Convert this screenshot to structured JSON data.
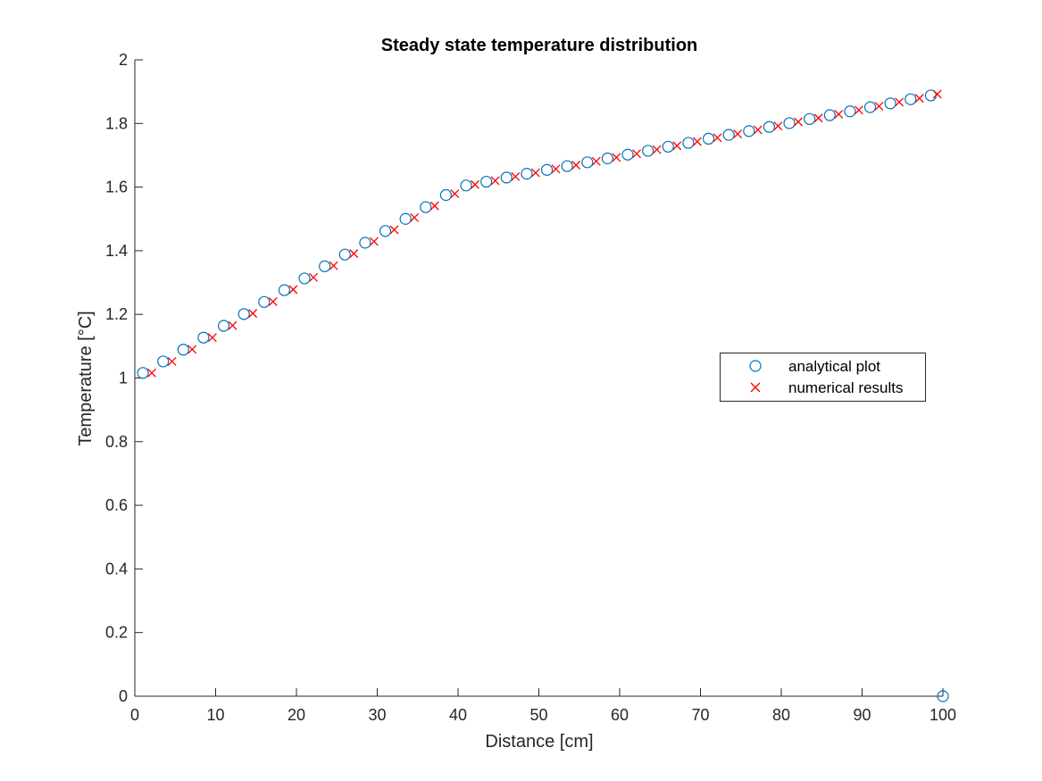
{
  "chart_data": {
    "type": "scatter",
    "title": "Steady state temperature distribution",
    "xlabel": "Distance [cm]",
    "ylabel": "Temperature [°C]",
    "xlim": [
      0,
      100
    ],
    "ylim": [
      0,
      2
    ],
    "xticks": [
      "0",
      "10",
      "20",
      "30",
      "40",
      "50",
      "60",
      "70",
      "80",
      "90",
      "100"
    ],
    "yticks": [
      "0",
      "0.2",
      "0.4",
      "0.6",
      "0.8",
      "1",
      "1.2",
      "1.4",
      "1.6",
      "1.8",
      "2"
    ],
    "grid": false,
    "legend_position": "right",
    "series": [
      {
        "name": "analytical plot",
        "marker": "circle",
        "color": "#0072BD",
        "points": [
          [
            1.0,
            1.016
          ],
          [
            3.5,
            1.052
          ],
          [
            6.0,
            1.089
          ],
          [
            8.5,
            1.127
          ],
          [
            11.0,
            1.164
          ],
          [
            13.5,
            1.201
          ],
          [
            16.0,
            1.239
          ],
          [
            18.5,
            1.276
          ],
          [
            21.0,
            1.313
          ],
          [
            23.5,
            1.351
          ],
          [
            26.0,
            1.388
          ],
          [
            28.5,
            1.425
          ],
          [
            31.0,
            1.462
          ],
          [
            33.5,
            1.5
          ],
          [
            36.0,
            1.537
          ],
          [
            38.5,
            1.575
          ],
          [
            41.0,
            1.605
          ],
          [
            43.5,
            1.617
          ],
          [
            46.0,
            1.63
          ],
          [
            48.5,
            1.642
          ],
          [
            51.0,
            1.654
          ],
          [
            53.5,
            1.666
          ],
          [
            56.0,
            1.678
          ],
          [
            58.5,
            1.69
          ],
          [
            61.0,
            1.702
          ],
          [
            63.5,
            1.714
          ],
          [
            66.0,
            1.727
          ],
          [
            68.5,
            1.739
          ],
          [
            71.0,
            1.752
          ],
          [
            73.5,
            1.764
          ],
          [
            76.0,
            1.776
          ],
          [
            78.5,
            1.789
          ],
          [
            81.0,
            1.801
          ],
          [
            83.5,
            1.814
          ],
          [
            86.0,
            1.826
          ],
          [
            88.5,
            1.838
          ],
          [
            91.0,
            1.851
          ],
          [
            93.5,
            1.863
          ],
          [
            96.0,
            1.876
          ],
          [
            98.5,
            1.888
          ],
          [
            100.0,
            0.0
          ]
        ]
      },
      {
        "name": "numerical results",
        "marker": "x",
        "color": "#FF0000",
        "points": [
          [
            2.1,
            1.016
          ],
          [
            4.6,
            1.052
          ],
          [
            7.1,
            1.09
          ],
          [
            9.6,
            1.127
          ],
          [
            12.1,
            1.165
          ],
          [
            14.6,
            1.203
          ],
          [
            17.1,
            1.24
          ],
          [
            19.6,
            1.278
          ],
          [
            22.1,
            1.316
          ],
          [
            24.6,
            1.353
          ],
          [
            27.1,
            1.391
          ],
          [
            29.6,
            1.429
          ],
          [
            32.1,
            1.466
          ],
          [
            34.6,
            1.504
          ],
          [
            37.1,
            1.541
          ],
          [
            39.6,
            1.579
          ],
          [
            42.1,
            1.608
          ],
          [
            44.6,
            1.62
          ],
          [
            47.1,
            1.633
          ],
          [
            49.6,
            1.645
          ],
          [
            52.1,
            1.657
          ],
          [
            54.6,
            1.669
          ],
          [
            57.1,
            1.681
          ],
          [
            59.6,
            1.693
          ],
          [
            62.1,
            1.705
          ],
          [
            64.6,
            1.718
          ],
          [
            67.1,
            1.73
          ],
          [
            69.6,
            1.743
          ],
          [
            72.1,
            1.755
          ],
          [
            74.6,
            1.767
          ],
          [
            77.1,
            1.78
          ],
          [
            79.6,
            1.792
          ],
          [
            82.1,
            1.805
          ],
          [
            84.6,
            1.817
          ],
          [
            87.1,
            1.829
          ],
          [
            89.6,
            1.842
          ],
          [
            92.1,
            1.854
          ],
          [
            94.6,
            1.867
          ],
          [
            97.1,
            1.879
          ],
          [
            99.3,
            1.892
          ]
        ]
      }
    ]
  }
}
